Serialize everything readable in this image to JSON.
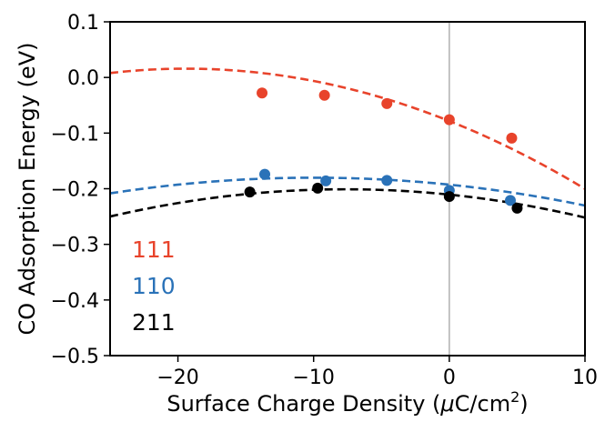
{
  "chart_data": {
    "type": "scatter",
    "xlabel": "Surface Charge Density (μC/cm²)",
    "xlabel_parts": {
      "main": "Surface Charge Density (",
      "mu": "μ",
      "unit": "C/cm",
      "sup": "2",
      "close": ")"
    },
    "ylabel": "CO Adsorption Energy (eV)",
    "xlim": [
      -25,
      10
    ],
    "ylim": [
      -0.5,
      0.1
    ],
    "xticks": [
      -20,
      -10,
      0,
      10
    ],
    "xtick_labels": [
      "−20",
      "−10",
      "0",
      "10"
    ],
    "yticks": [
      0.1,
      0.0,
      -0.1,
      -0.2,
      -0.3,
      -0.4,
      -0.5
    ],
    "ytick_labels": [
      "0.1",
      "0.0",
      "−0.1",
      "−0.2",
      "−0.3",
      "−0.4",
      "−0.5"
    ],
    "vline_x": 0,
    "vline_color": "#b0b0b0",
    "grid": false,
    "legend_placement": "lower-left",
    "series": [
      {
        "name": "111",
        "color": "#e8432b",
        "points": [
          [
            -13.8,
            -0.028
          ],
          [
            -9.2,
            -0.032
          ],
          [
            -4.6,
            -0.047
          ],
          [
            0.0,
            -0.076
          ],
          [
            4.6,
            -0.109
          ]
        ],
        "fit": {
          "a": -0.00025,
          "b": -0.0097,
          "c": -0.0783
        }
      },
      {
        "name": "110",
        "color": "#2a72b8",
        "points": [
          [
            -13.6,
            -0.174
          ],
          [
            -9.1,
            -0.186
          ],
          [
            -4.6,
            -0.185
          ],
          [
            0.0,
            -0.203
          ],
          [
            4.5,
            -0.221
          ]
        ],
        "fit": {
          "a": -0.000125,
          "b": -0.0025,
          "c": -0.1927
        }
      },
      {
        "name": "211",
        "color": "#000000",
        "points": [
          [
            -14.7,
            -0.206
          ],
          [
            -9.7,
            -0.199
          ],
          [
            0.0,
            -0.214
          ],
          [
            5.0,
            -0.235
          ]
        ],
        "fit": {
          "a": -0.000163,
          "b": -0.0025,
          "c": -0.2106
        }
      }
    ]
  }
}
